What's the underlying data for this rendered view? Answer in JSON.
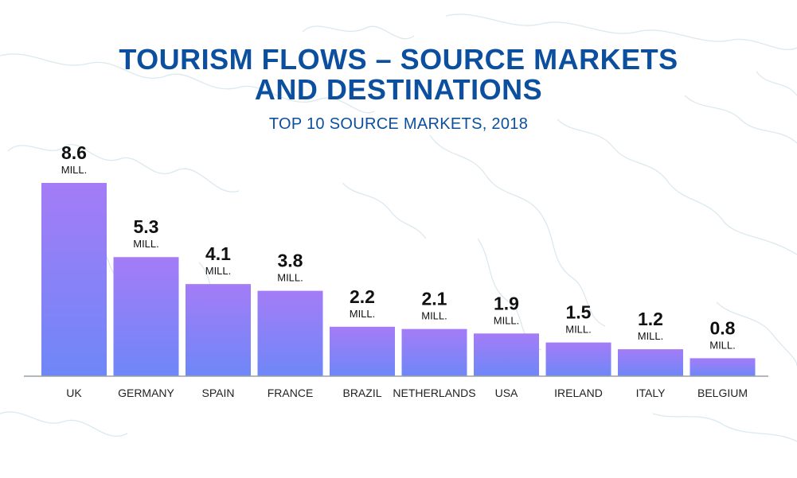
{
  "header": {
    "title_line1": "TOURISM FLOWS – SOURCE MARKETS",
    "title_line2": "AND DESTINATIONS",
    "subtitle": "TOP 10 SOURCE MARKETS, 2018"
  },
  "colors": {
    "title": "#0b4f9e",
    "bar_top": "#a47cf7",
    "bar_bottom": "#6e87f7",
    "axis": "#9aa0a6",
    "map_lines": "#dbe9ef"
  },
  "chart_data": {
    "type": "bar",
    "title": "TOURISM FLOWS – SOURCE MARKETS AND DESTINATIONS",
    "subtitle": "TOP 10 SOURCE MARKETS, 2018",
    "categories": [
      "UK",
      "GERMANY",
      "SPAIN",
      "FRANCE",
      "BRAZIL",
      "NETHERLANDS",
      "USA",
      "IRELAND",
      "ITALY",
      "BELGIUM"
    ],
    "values": [
      8.6,
      5.3,
      4.1,
      3.8,
      2.2,
      2.1,
      1.9,
      1.5,
      1.2,
      0.8
    ],
    "value_labels": [
      "8.6",
      "5.3",
      "4.1",
      "3.8",
      "2.2",
      "2.1",
      "1.9",
      "1.5",
      "1.2",
      "0.8"
    ],
    "unit_label": "MILL.",
    "xlabel": "",
    "ylabel": "",
    "ylim": [
      0,
      8.6
    ],
    "grid": false,
    "legend": "none"
  }
}
